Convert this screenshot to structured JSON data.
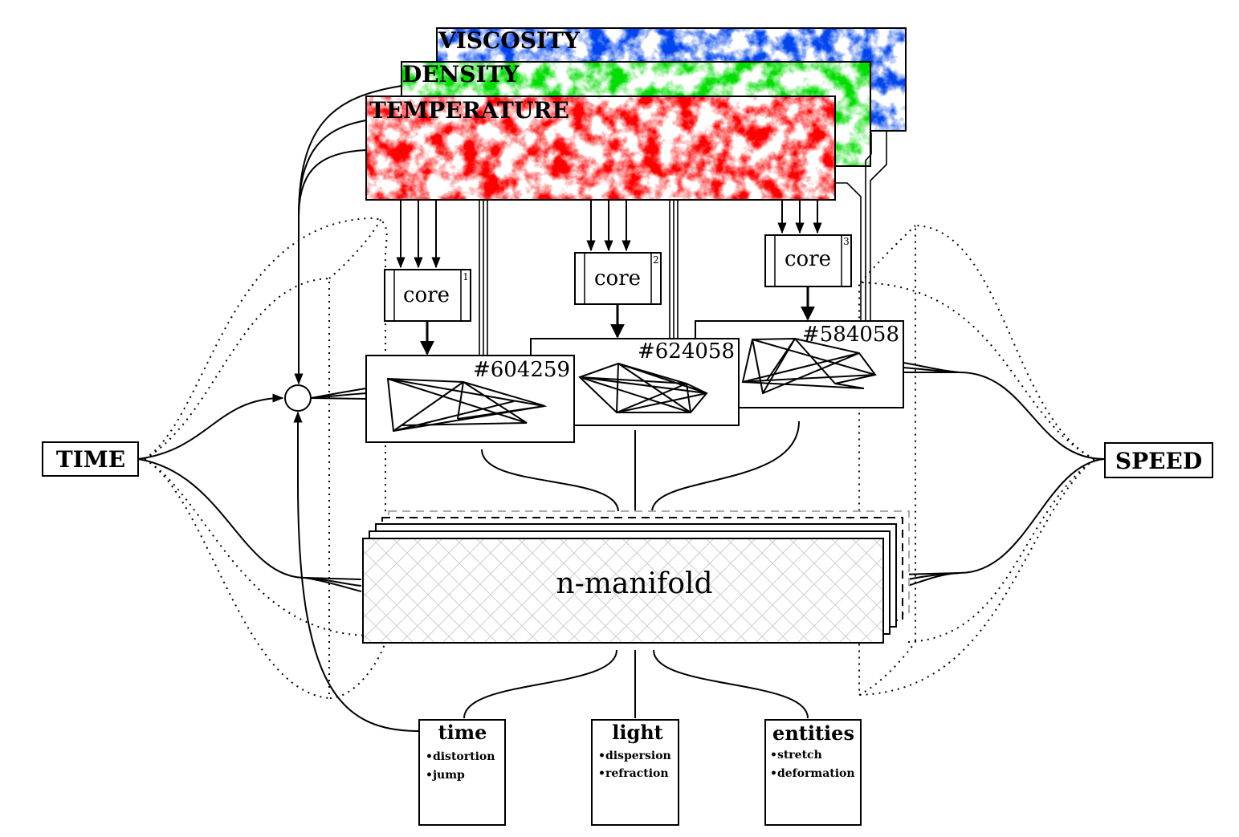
{
  "fields": {
    "viscosity": {
      "label": "VISCOSITY",
      "color": "#0044ee"
    },
    "density": {
      "label": "DENSITY",
      "color": "#00dd00"
    },
    "temperature": {
      "label": "TEMPERATURE",
      "color": "#ff0000"
    }
  },
  "cores": [
    {
      "label": "core",
      "index": "1"
    },
    {
      "label": "core",
      "index": "2"
    },
    {
      "label": "core",
      "index": "3"
    }
  ],
  "graphs": [
    {
      "label": "#604259"
    },
    {
      "label": "#624058"
    },
    {
      "label": "#584058"
    }
  ],
  "time_node": {
    "label": "TIME"
  },
  "speed_node": {
    "label": "SPEED"
  },
  "manifold": {
    "label": "n-manifold"
  },
  "effects": [
    {
      "title": "time",
      "items": [
        "•distortion",
        "•jump"
      ]
    },
    {
      "title": "light",
      "items": [
        "•dispersion",
        "•refraction"
      ]
    },
    {
      "title": "entities",
      "items": [
        "•stretch",
        "•deformation"
      ]
    }
  ]
}
